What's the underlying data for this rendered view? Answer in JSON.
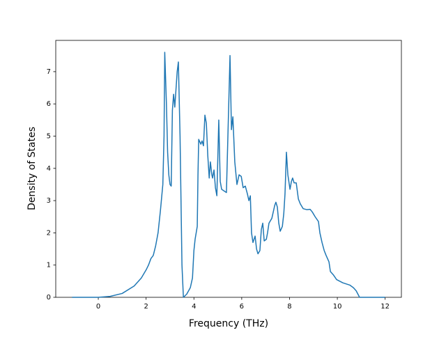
{
  "chart_data": {
    "type": "line",
    "xlabel": "Frequency (THz)",
    "ylabel": "Density of States",
    "xlim": [
      -1.78,
      12.68
    ],
    "ylim": [
      0,
      7.97
    ],
    "xticks": [
      0,
      2,
      4,
      6,
      8,
      10,
      12
    ],
    "yticks": [
      0,
      1,
      2,
      3,
      4,
      5,
      6,
      7
    ],
    "x": [
      -1.1,
      0,
      0.5,
      1,
      1.5,
      1.8,
      2.0,
      2.1,
      2.2,
      2.3,
      2.4,
      2.5,
      2.6,
      2.7,
      2.75,
      2.78,
      2.85,
      2.9,
      2.95,
      3.0,
      3.05,
      3.1,
      3.15,
      3.2,
      3.3,
      3.35,
      3.42,
      3.5,
      3.56,
      3.7,
      3.85,
      3.94,
      4.0,
      4.05,
      4.14,
      4.17,
      4.2,
      4.29,
      4.34,
      4.4,
      4.46,
      4.52,
      4.58,
      4.64,
      4.69,
      4.75,
      4.78,
      4.84,
      4.9,
      4.96,
      5.04,
      5.1,
      5.16,
      5.36,
      5.51,
      5.57,
      5.63,
      5.71,
      5.8,
      5.89,
      5.98,
      6.06,
      6.15,
      6.24,
      6.3,
      6.36,
      6.41,
      6.47,
      6.56,
      6.62,
      6.68,
      6.76,
      6.82,
      6.88,
      6.94,
      7.03,
      7.08,
      7.14,
      7.26,
      7.38,
      7.43,
      7.49,
      7.55,
      7.61,
      7.7,
      7.76,
      7.81,
      7.87,
      7.93,
      8.02,
      8.08,
      8.13,
      8.19,
      8.28,
      8.37,
      8.45,
      8.57,
      8.72,
      8.86,
      8.95,
      9.07,
      9.21,
      9.27,
      9.36,
      9.45,
      9.53,
      9.65,
      9.71,
      9.83,
      9.97,
      10.23,
      10.52,
      10.67,
      10.79,
      10.93,
      12
    ],
    "series": [
      {
        "color": "#1f77b4",
        "values": [
          0,
          0,
          0.03,
          0.12,
          0.35,
          0.6,
          0.85,
          1.0,
          1.2,
          1.3,
          1.6,
          2.0,
          2.7,
          3.5,
          5.0,
          7.6,
          6.0,
          4.5,
          3.8,
          3.5,
          3.45,
          5.8,
          6.3,
          5.9,
          7.0,
          7.3,
          5.0,
          1.0,
          0,
          0.1,
          0.3,
          0.6,
          1.45,
          1.8,
          2.2,
          3.8,
          4.9,
          4.75,
          4.85,
          4.7,
          5.65,
          5.4,
          4.4,
          3.7,
          4.2,
          3.8,
          3.7,
          3.95,
          3.4,
          3.15,
          5.5,
          3.6,
          3.35,
          3.25,
          7.5,
          5.2,
          5.6,
          4.2,
          3.5,
          3.8,
          3.75,
          3.4,
          3.45,
          3.2,
          3.0,
          3.15,
          2.0,
          1.7,
          1.9,
          1.5,
          1.35,
          1.45,
          2.1,
          2.3,
          1.75,
          1.8,
          2.0,
          2.3,
          2.45,
          2.85,
          2.95,
          2.8,
          2.3,
          2.05,
          2.2,
          2.6,
          3.2,
          4.5,
          3.8,
          3.35,
          3.6,
          3.7,
          3.55,
          3.55,
          3.05,
          2.9,
          2.75,
          2.72,
          2.73,
          2.65,
          2.5,
          2.35,
          2.0,
          1.7,
          1.45,
          1.3,
          1.1,
          0.8,
          0.7,
          0.55,
          0.45,
          0.38,
          0.3,
          0.2,
          0,
          0
        ]
      }
    ]
  }
}
